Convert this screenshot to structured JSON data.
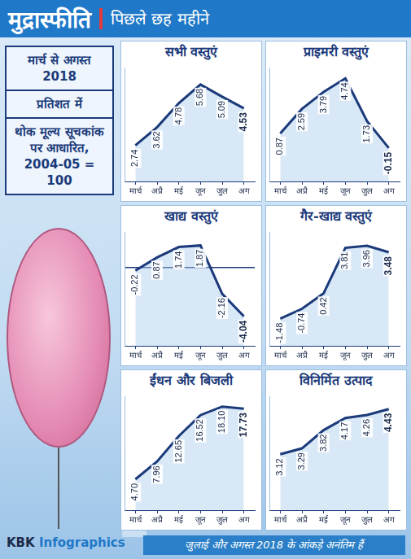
{
  "header": {
    "title": "मुद्रास्फीति",
    "subtitle": "पिछले छह महीने"
  },
  "sidebar": {
    "period": "मार्च से अगस्त 2018",
    "unit": "प्रतिशत में",
    "basis": "थोक मूल्य सूचकांक पर आधारित, 2004-05 = 100"
  },
  "footer": {
    "credit": "KBK Infographics",
    "note": "जुलाई और अगस्त 2018 के आंकड़े अनंतिम हैं"
  },
  "chart_data": [
    {
      "type": "line",
      "title": "सभी वस्तुएं",
      "categories": [
        "मार्च",
        "अप्रै",
        "मई",
        "जून",
        "जुल",
        "अग"
      ],
      "values": [
        2.74,
        3.62,
        4.78,
        5.68,
        5.09,
        4.53
      ],
      "value_labels": [
        "2.74",
        "3.62",
        "4.78",
        "5.68",
        "5.09",
        "4.53"
      ],
      "color": "#1b3a7a",
      "ylim": [
        1,
        6.5
      ],
      "yticks": [],
      "grid": false,
      "data_labels": true,
      "tick_labels": "x"
    },
    {
      "type": "line",
      "title": "प्राइमरी वस्तुएं",
      "categories": [
        "मार्च",
        "अप्रै",
        "मई",
        "जून",
        "जुल",
        "अग"
      ],
      "values": [
        0.87,
        2.59,
        3.79,
        4.74,
        1.73,
        -0.15
      ],
      "value_labels": [
        "0.87",
        "2.59",
        "3.79",
        "4.74",
        "1.73",
        "-0.15"
      ],
      "color": "#1b3a7a",
      "ylim": [
        -2.5,
        5.5
      ],
      "yticks": [],
      "grid": false,
      "data_labels": true,
      "tick_labels": "x"
    },
    {
      "type": "line",
      "title": "खाद्य वस्तुएं",
      "categories": [
        "मार्च",
        "अप्रै",
        "मई",
        "जून",
        "जुल",
        "अग"
      ],
      "values": [
        -0.22,
        0.87,
        1.74,
        1.87,
        -2.16,
        -4.04
      ],
      "value_labels": [
        "-0.22",
        "0.87",
        "1.74",
        "1.87",
        "-2.16",
        "-4.04"
      ],
      "color": "#1b3a7a",
      "ylim": [
        -6.5,
        3
      ],
      "yticks": [
        0
      ],
      "grid": true,
      "data_labels": true,
      "tick_labels": "x"
    },
    {
      "type": "line",
      "title": "गैर-खाद्य वस्तुएं",
      "categories": [
        "मार्च",
        "अप्रै",
        "मई",
        "जून",
        "जुल",
        "अग"
      ],
      "values": [
        -1.48,
        -0.74,
        0.42,
        3.81,
        3.96,
        3.48
      ],
      "value_labels": [
        "-1.48",
        "-0.74",
        "0.42",
        "3.81",
        "3.96",
        "3.48"
      ],
      "color": "#1b3a7a",
      "ylim": [
        -3.5,
        5
      ],
      "yticks": [],
      "grid": false,
      "data_labels": true,
      "tick_labels": "x"
    },
    {
      "type": "line",
      "title": "ईंधन और बिजली",
      "categories": [
        "मार्च",
        "अप्रै",
        "मई",
        "जून",
        "जुल",
        "अग"
      ],
      "values": [
        4.7,
        7.96,
        12.65,
        16.52,
        18.1,
        17.73
      ],
      "value_labels": [
        "4.70",
        "7.96",
        "12.65",
        "16.52",
        "18.10",
        "17.73"
      ],
      "color": "#1b3a7a",
      "ylim": [
        -1,
        20
      ],
      "yticks": [],
      "grid": false,
      "data_labels": true,
      "tick_labels": "x"
    },
    {
      "type": "line",
      "title": "विनिर्मित उत्पाद",
      "categories": [
        "मार्च",
        "अप्रै",
        "मई",
        "जून",
        "जुल",
        "अग"
      ],
      "values": [
        3.12,
        3.29,
        3.82,
        4.17,
        4.26,
        4.43
      ],
      "value_labels": [
        "3.12",
        "3.29",
        "3.82",
        "4.17",
        "4.26",
        "4.43"
      ],
      "color": "#1b3a7a",
      "ylim": [
        1.5,
        4.8
      ],
      "yticks": [],
      "grid": false,
      "data_labels": true,
      "tick_labels": "x"
    }
  ]
}
